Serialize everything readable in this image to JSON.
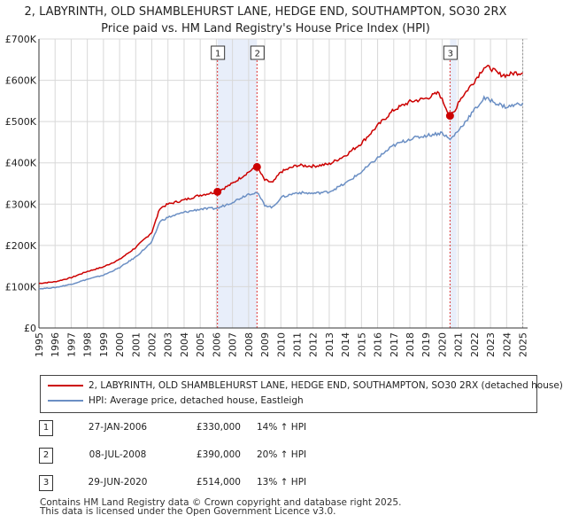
{
  "chart_data": {
    "type": "line",
    "title": "2, LABYRINTH, OLD SHAMBLEHURST LANE, HEDGE END, SOUTHAMPTON, SO30 2RX",
    "subtitle": "Price paid vs. HM Land Registry's House Price Index (HPI)",
    "xlim": [
      1995,
      2025.3
    ],
    "ylim": [
      0,
      700000
    ],
    "y_ticks": [
      0,
      100000,
      200000,
      300000,
      400000,
      500000,
      600000,
      700000
    ],
    "y_tick_labels": [
      "£0",
      "£100K",
      "£200K",
      "£300K",
      "£400K",
      "£500K",
      "£600K",
      "£700K"
    ],
    "x_ticks": [
      1995,
      1996,
      1997,
      1998,
      1999,
      2000,
      2001,
      2002,
      2003,
      2004,
      2005,
      2006,
      2007,
      2008,
      2009,
      2010,
      2011,
      2012,
      2013,
      2014,
      2015,
      2016,
      2017,
      2018,
      2019,
      2020,
      2021,
      2022,
      2023,
      2024,
      2025
    ],
    "x_tick_labels": [
      "1995",
      "1996",
      "1997",
      "1998",
      "1999",
      "2000",
      "2001",
      "2002",
      "2003",
      "2004",
      "2005",
      "2006",
      "2007",
      "2008",
      "2009",
      "2010",
      "2011",
      "2012",
      "2013",
      "2014",
      "2015",
      "2016",
      "2017",
      "2018",
      "2019",
      "2020",
      "2021",
      "2022",
      "2023",
      "2024",
      "2025"
    ],
    "series": [
      {
        "name": "2, LABYRINTH, OLD SHAMBLEHURST LANE, HEDGE END, SOUTHAMPTON, SO30 2RX (detached house)",
        "color": "#cc0000",
        "points": [
          [
            1995.0,
            108000
          ],
          [
            1996.0,
            112000
          ],
          [
            1997.0,
            122000
          ],
          [
            1998.0,
            137000
          ],
          [
            1999.0,
            148000
          ],
          [
            2000.0,
            166000
          ],
          [
            2001.0,
            195000
          ],
          [
            2002.0,
            232000
          ],
          [
            2002.5,
            290000
          ],
          [
            2003.0,
            300000
          ],
          [
            2004.0,
            310000
          ],
          [
            2005.0,
            322000
          ],
          [
            2006.07,
            330000
          ],
          [
            2007.0,
            350000
          ],
          [
            2008.0,
            378000
          ],
          [
            2008.52,
            390000
          ],
          [
            2009.0,
            358000
          ],
          [
            2009.5,
            352000
          ],
          [
            2010.0,
            378000
          ],
          [
            2011.0,
            394000
          ],
          [
            2012.0,
            392000
          ],
          [
            2013.0,
            397000
          ],
          [
            2014.0,
            418000
          ],
          [
            2015.0,
            448000
          ],
          [
            2016.0,
            490000
          ],
          [
            2017.0,
            528000
          ],
          [
            2018.0,
            548000
          ],
          [
            2019.0,
            556000
          ],
          [
            2019.8,
            570000
          ],
          [
            2020.0,
            553000
          ],
          [
            2020.49,
            514000
          ],
          [
            2020.8,
            525000
          ],
          [
            2021.0,
            548000
          ],
          [
            2022.0,
            598000
          ],
          [
            2022.6,
            632000
          ],
          [
            2023.0,
            630000
          ],
          [
            2023.5,
            615000
          ],
          [
            2024.0,
            612000
          ],
          [
            2024.5,
            618000
          ],
          [
            2025.0,
            618000
          ]
        ]
      },
      {
        "name": "HPI: Average price, detached house, Eastleigh",
        "color": "#6b8fc4",
        "points": [
          [
            1995.0,
            95000
          ],
          [
            1996.0,
            98000
          ],
          [
            1997.0,
            106000
          ],
          [
            1998.0,
            118000
          ],
          [
            1999.0,
            128000
          ],
          [
            2000.0,
            146000
          ],
          [
            2001.0,
            172000
          ],
          [
            2002.0,
            208000
          ],
          [
            2002.5,
            258000
          ],
          [
            2003.0,
            268000
          ],
          [
            2004.0,
            280000
          ],
          [
            2005.0,
            288000
          ],
          [
            2006.07,
            290000
          ],
          [
            2007.0,
            305000
          ],
          [
            2008.0,
            325000
          ],
          [
            2008.52,
            328000
          ],
          [
            2009.0,
            298000
          ],
          [
            2009.5,
            292000
          ],
          [
            2010.0,
            316000
          ],
          [
            2011.0,
            328000
          ],
          [
            2012.0,
            326000
          ],
          [
            2013.0,
            330000
          ],
          [
            2014.0,
            350000
          ],
          [
            2015.0,
            378000
          ],
          [
            2016.0,
            412000
          ],
          [
            2017.0,
            442000
          ],
          [
            2018.0,
            458000
          ],
          [
            2019.0,
            466000
          ],
          [
            2020.0,
            473000
          ],
          [
            2020.49,
            456000
          ],
          [
            2021.0,
            478000
          ],
          [
            2022.0,
            528000
          ],
          [
            2022.6,
            556000
          ],
          [
            2023.0,
            552000
          ],
          [
            2023.5,
            542000
          ],
          [
            2024.0,
            535000
          ],
          [
            2024.5,
            540000
          ],
          [
            2025.0,
            545000
          ]
        ]
      }
    ],
    "sales": [
      {
        "label": "1",
        "x": 2006.07,
        "price": 330000
      },
      {
        "label": "2",
        "x": 2008.52,
        "price": 390000
      },
      {
        "label": "3",
        "x": 2020.49,
        "price": 514000
      }
    ],
    "shaded_periods": [
      [
        2006.07,
        2008.52
      ],
      [
        2020.49,
        2020.9
      ]
    ]
  },
  "legend": {
    "series1": "2, LABYRINTH, OLD SHAMBLEHURST LANE, HEDGE END, SOUTHAMPTON, SO30 2RX (detached house)",
    "series2": "HPI: Average price, detached house, Eastleigh"
  },
  "sales_table": [
    {
      "num": "1",
      "date": "27-JAN-2006",
      "price": "£330,000",
      "hpi": "14% ↑ HPI"
    },
    {
      "num": "2",
      "date": "08-JUL-2008",
      "price": "£390,000",
      "hpi": "20% ↑ HPI"
    },
    {
      "num": "3",
      "date": "29-JUN-2020",
      "price": "£514,000",
      "hpi": "13% ↑ HPI"
    }
  ],
  "footer": {
    "line1": "Contains HM Land Registry data © Crown copyright and database right 2025.",
    "line2": "This data is licensed under the Open Government Licence v3.0."
  },
  "colors": {
    "price": "#cc0000",
    "hpi": "#6b8fc4",
    "shade": "#e8eefa",
    "grid": "#d8d8d8"
  }
}
